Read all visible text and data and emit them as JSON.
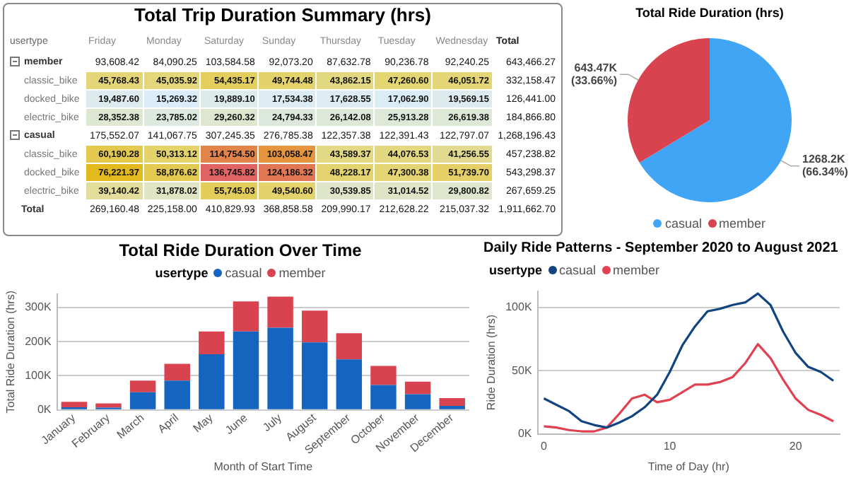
{
  "chart_data": [
    {
      "type": "heatmap",
      "title": "Total Trip Duration Summary (hrs)",
      "ylabel": "usertype",
      "categories": [
        "Friday",
        "Monday",
        "Saturday",
        "Sunday",
        "Thursday",
        "Tuesday",
        "Wednesday",
        "Total"
      ],
      "y_categories": [
        "member",
        "classic_bike",
        "docked_bike",
        "electric_bike",
        "casual",
        "classic_bike",
        "docked_bike",
        "electric_bike",
        "Total"
      ],
      "cells": [
        [
          93608.42,
          84090.25,
          103584.58,
          92073.2,
          87632.78,
          90236.78,
          92240.25,
          643466.27
        ],
        [
          45768.43,
          45035.92,
          54435.17,
          49744.48,
          43862.15,
          47260.6,
          46051.72,
          332158.47
        ],
        [
          19487.6,
          15269.32,
          19889.1,
          17534.38,
          17628.55,
          17062.9,
          19569.15,
          126441.0
        ],
        [
          28352.38,
          23785.02,
          29260.32,
          24794.33,
          26142.08,
          25913.28,
          26619.38,
          184866.8
        ],
        [
          175552.07,
          141067.75,
          307245.35,
          276785.38,
          122357.38,
          122391.43,
          122797.07,
          1268196.43
        ],
        [
          60190.28,
          50313.12,
          114754.5,
          103058.47,
          43589.37,
          44076.53,
          41256.55,
          457238.82
        ],
        [
          76221.37,
          58876.62,
          136745.82,
          124186.32,
          48228.17,
          47300.38,
          51739.7,
          543298.37
        ],
        [
          39140.42,
          31878.02,
          55745.03,
          49540.6,
          30539.85,
          31014.52,
          29800.82,
          267659.25
        ],
        [
          269160.48,
          225158.0,
          410829.93,
          368858.58,
          209990.17,
          212628.22,
          215037.32,
          1911662.7
        ]
      ],
      "cell_labels": [
        [
          "93,608.42",
          "84,090.25",
          "103,584.58",
          "92,073.20",
          "87,632.78",
          "90,236.78",
          "92,240.25",
          "643,466.27"
        ],
        [
          "45,768.43",
          "45,035.92",
          "54,435.17",
          "49,744.48",
          "43,862.15",
          "47,260.60",
          "46,051.72",
          "332,158.47"
        ],
        [
          "19,487.60",
          "15,269.32",
          "19,889.10",
          "17,534.38",
          "17,628.55",
          "17,062.90",
          "19,569.15",
          "126,441.00"
        ],
        [
          "28,352.38",
          "23,785.02",
          "29,260.32",
          "24,794.33",
          "26,142.08",
          "25,913.28",
          "26,619.38",
          "184,866.80"
        ],
        [
          "175,552.07",
          "141,067.75",
          "307,245.35",
          "276,785.38",
          "122,357.38",
          "122,391.43",
          "122,797.07",
          "1,268,196.43"
        ],
        [
          "60,190.28",
          "50,313.12",
          "114,754.50",
          "103,058.47",
          "43,589.37",
          "44,076.53",
          "41,256.55",
          "457,238.82"
        ],
        [
          "76,221.37",
          "58,876.62",
          "136,745.82",
          "124,186.32",
          "48,228.17",
          "47,300.38",
          "51,739.70",
          "543,298.37"
        ],
        [
          "39,140.42",
          "31,878.02",
          "55,745.03",
          "49,540.60",
          "30,539.85",
          "31,014.52",
          "29,800.82",
          "267,659.25"
        ],
        [
          "269,160.48",
          "225,158.00",
          "410,829.93",
          "368,858.58",
          "209,990.17",
          "212,628.22",
          "215,037.32",
          "1,911,662.70"
        ]
      ]
    },
    {
      "type": "pie",
      "title": "Total Ride Duration (hrs)",
      "categories": [
        "casual",
        "member"
      ],
      "values": [
        1268200,
        643470
      ],
      "colors": [
        "#41a5f5",
        "#d9434f"
      ],
      "value_labels": [
        "1268.2K (66.34%)",
        "643.47K (33.66%)"
      ],
      "legend": "bottom"
    },
    {
      "type": "bar",
      "stacked": true,
      "title": "Total Ride Duration Over Time",
      "xlabel": "Month of Start Time",
      "ylabel": "Total Ride Duration (hrs)",
      "legend_title": "usertype",
      "legend": "top",
      "grid": "y",
      "categories": [
        "January",
        "February",
        "March",
        "April",
        "May",
        "June",
        "July",
        "August",
        "September",
        "October",
        "November",
        "December"
      ],
      "series": [
        {
          "name": "casual",
          "color": "#1565c0",
          "values": [
            8000,
            7000,
            52000,
            86000,
            163000,
            230000,
            241000,
            198000,
            148000,
            73000,
            46000,
            12000
          ]
        },
        {
          "name": "member",
          "color": "#d9434f",
          "values": [
            16000,
            12000,
            34000,
            49000,
            67000,
            88000,
            91000,
            93000,
            77000,
            56000,
            37000,
            23000
          ]
        }
      ],
      "ylim": [
        0,
        340000
      ],
      "yticks": [
        {
          "value": 0,
          "label": "0K"
        },
        {
          "value": 100000,
          "label": "100K"
        },
        {
          "value": 200000,
          "label": "200K"
        },
        {
          "value": 300000,
          "label": "300K"
        }
      ]
    },
    {
      "type": "line",
      "title": "Daily Ride Patterns - September 2020 to August 2021",
      "xlabel": "Time of Day (hr)",
      "ylabel": "Ride Duration (hrs)",
      "legend_title": "usertype",
      "legend": "top left",
      "grid": "y",
      "marker": "none",
      "x": [
        0,
        1,
        2,
        3,
        4,
        5,
        6,
        7,
        8,
        9,
        10,
        11,
        12,
        13,
        14,
        15,
        16,
        17,
        18,
        19,
        20,
        21,
        22,
        23
      ],
      "series": [
        {
          "name": "casual",
          "color": "#12447f",
          "values": [
            28000,
            23000,
            18000,
            10000,
            7000,
            5000,
            9000,
            14000,
            21000,
            31000,
            49000,
            70000,
            85000,
            97000,
            99000,
            102000,
            104000,
            111000,
            102000,
            81000,
            64000,
            53000,
            49000,
            42000
          ]
        },
        {
          "name": "member",
          "color": "#e0404f",
          "values": [
            6000,
            5000,
            3000,
            2000,
            2000,
            5000,
            16000,
            28000,
            31000,
            25000,
            27000,
            33000,
            39000,
            39000,
            41000,
            45000,
            56000,
            71000,
            60000,
            43000,
            28000,
            19000,
            15000,
            10000
          ]
        }
      ],
      "xlim": [
        -0.5,
        23.5
      ],
      "xticks": [
        0,
        10,
        20
      ],
      "ylim": [
        0,
        113000
      ],
      "yticks": [
        {
          "value": 0,
          "label": "0K"
        },
        {
          "value": 50000,
          "label": "50K"
        },
        {
          "value": 100000,
          "label": "100K"
        }
      ]
    }
  ]
}
